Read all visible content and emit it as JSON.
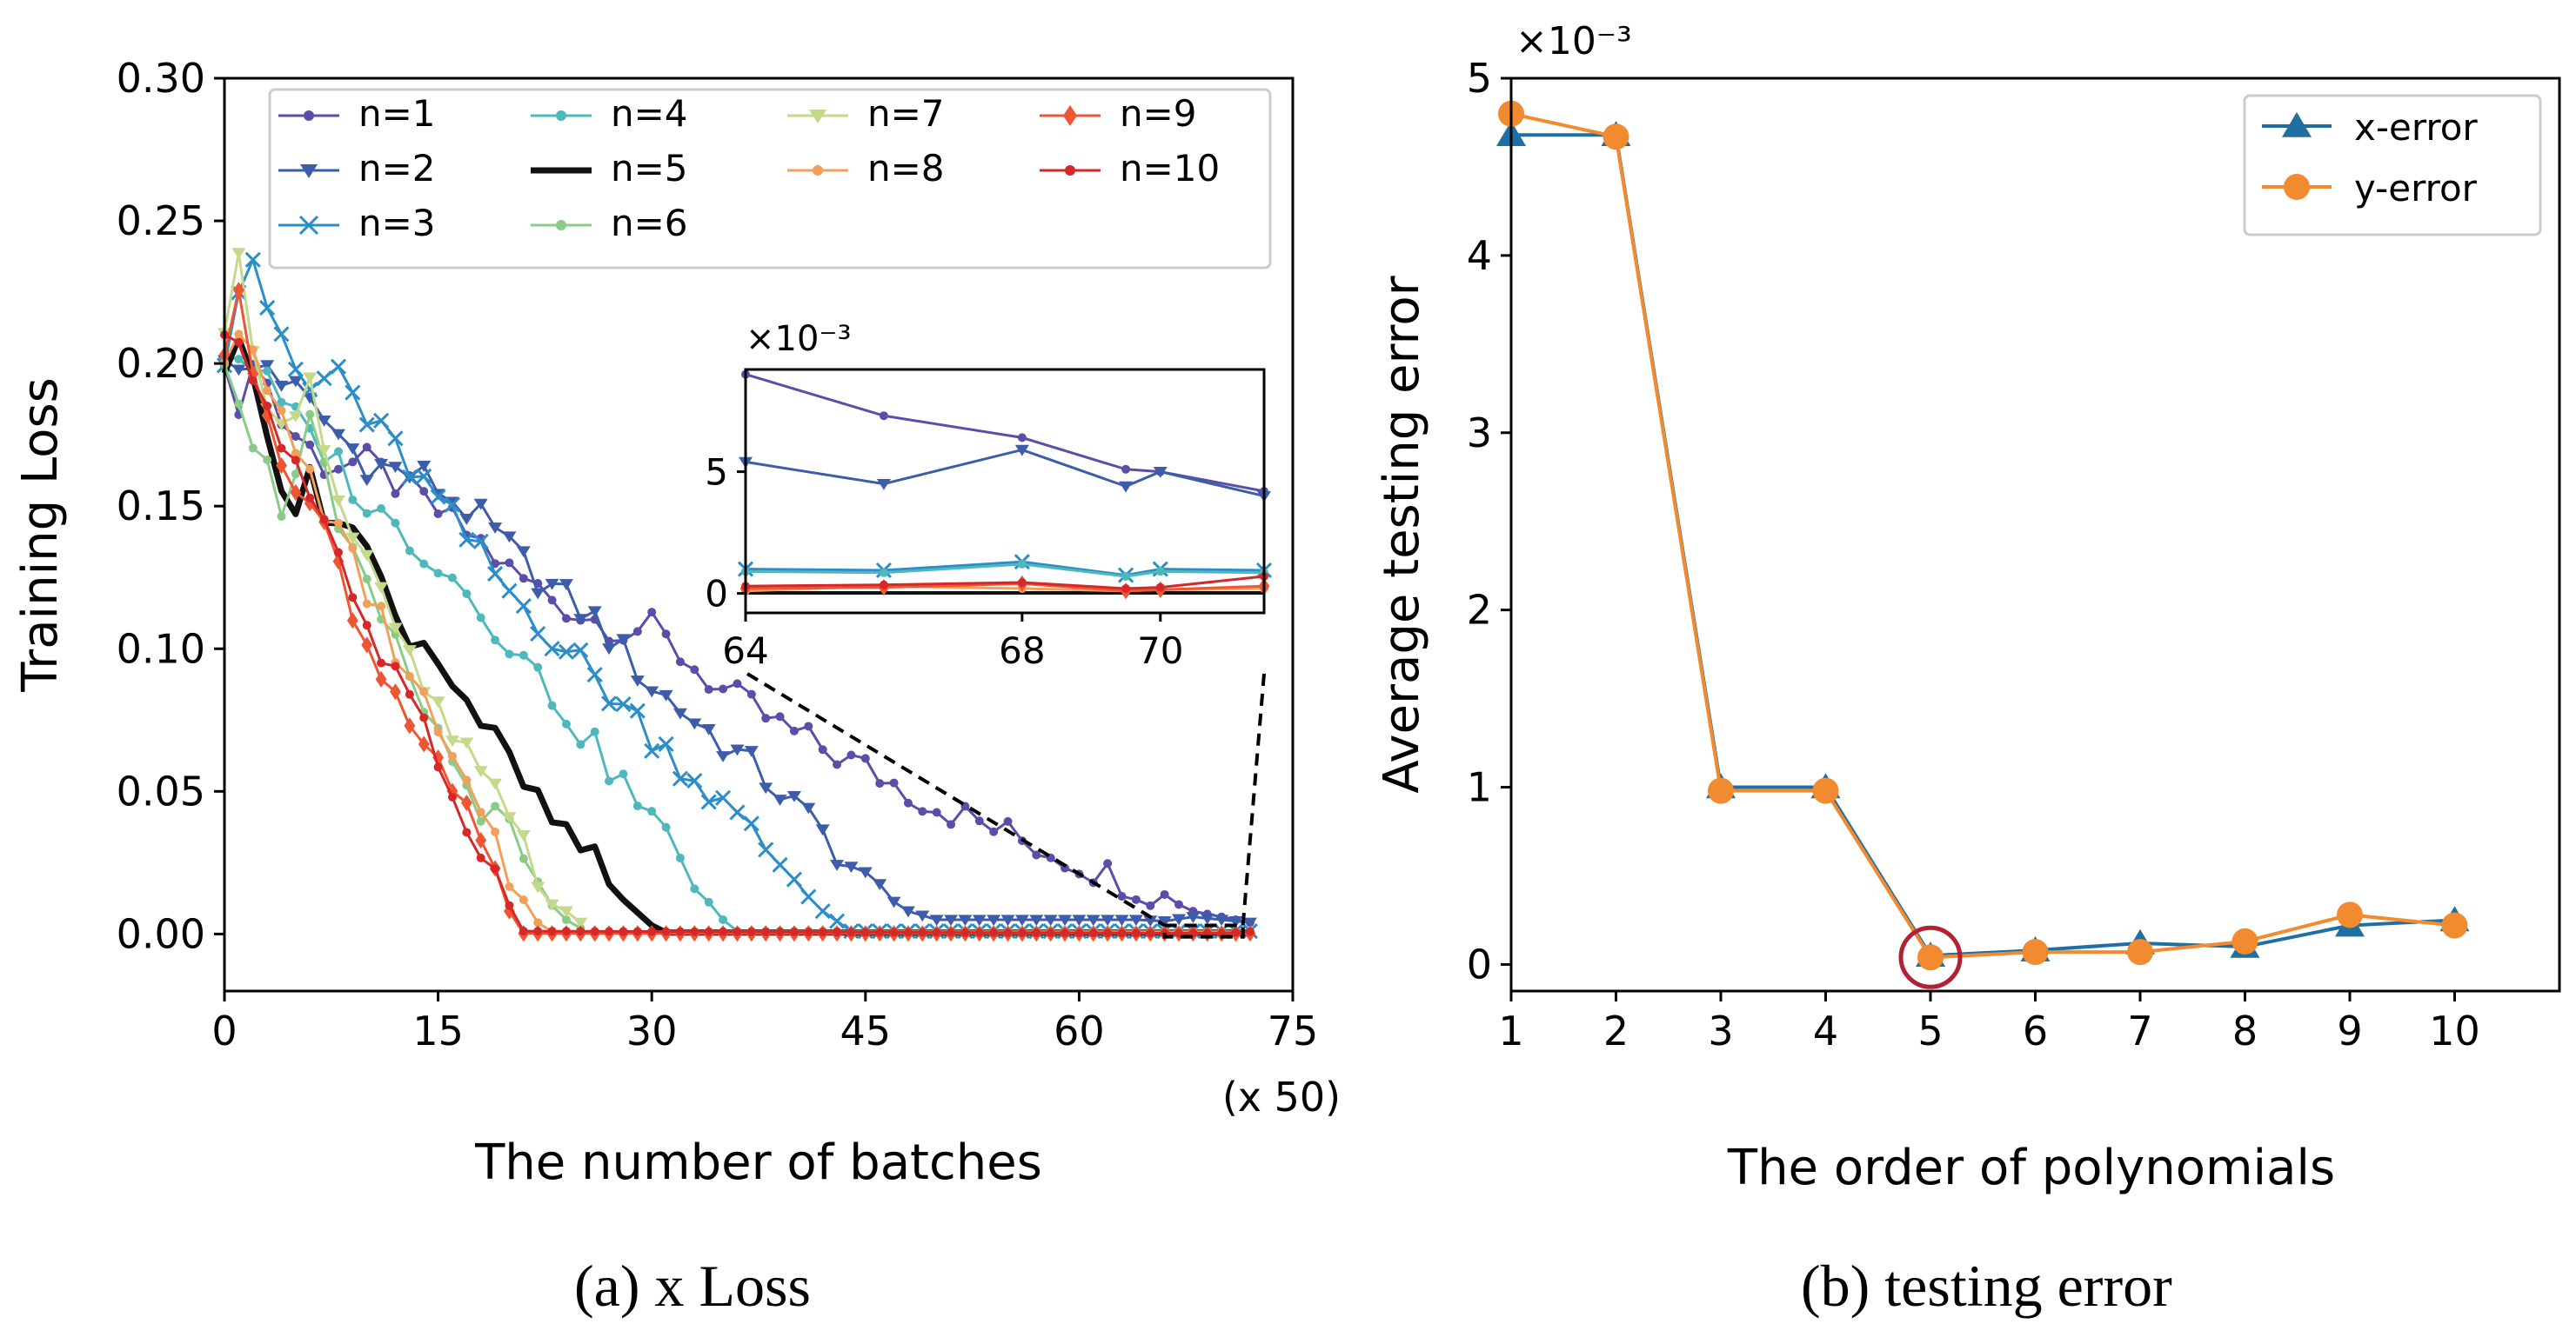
{
  "captions": {
    "left": "(a) x Loss",
    "right": "(b) testing error"
  },
  "chart_data": [
    {
      "type": "line",
      "title": "",
      "xlabel": "The number of batches",
      "x_multiplier_label": "(x 50)",
      "ylabel": "Training Loss",
      "xlim": [
        0,
        75
      ],
      "ylim": [
        -0.02,
        0.3
      ],
      "xticks": [
        0,
        15,
        30,
        45,
        60,
        75
      ],
      "yticks": [
        0.0,
        0.05,
        0.1,
        0.15,
        0.2,
        0.25,
        0.3
      ],
      "ytick_labels": [
        "0.00",
        "0.05",
        "0.10",
        "0.15",
        "0.20",
        "0.25",
        "0.30"
      ],
      "legend_loc": "top",
      "series": [
        {
          "name": "n=1",
          "color": "#5b4ea8",
          "marker": "dot",
          "end": 72,
          "anchors": [
            [
              0,
              0.205
            ],
            [
              1,
              0.177
            ],
            [
              2,
              0.205
            ],
            [
              4,
              0.18
            ],
            [
              7,
              0.165
            ],
            [
              10,
              0.165
            ],
            [
              15,
              0.148
            ],
            [
              18,
              0.137
            ],
            [
              20,
              0.127
            ],
            [
              25,
              0.112
            ],
            [
              28,
              0.107
            ],
            [
              30,
              0.107
            ],
            [
              32,
              0.098
            ],
            [
              35,
              0.085
            ],
            [
              40,
              0.07
            ],
            [
              45,
              0.058
            ],
            [
              50,
              0.045
            ],
            [
              55,
              0.035
            ],
            [
              60,
              0.025
            ],
            [
              65,
              0.015
            ],
            [
              68,
              0.008
            ],
            [
              70,
              0.006
            ],
            [
              72,
              0.004
            ]
          ]
        },
        {
          "name": "n=2",
          "color": "#3d5dab",
          "marker": "tri",
          "end": 72,
          "anchors": [
            [
              0,
              0.205
            ],
            [
              1,
              0.195
            ],
            [
              3,
              0.2
            ],
            [
              6,
              0.185
            ],
            [
              10,
              0.165
            ],
            [
              14,
              0.16
            ],
            [
              18,
              0.145
            ],
            [
              22,
              0.125
            ],
            [
              26,
              0.11
            ],
            [
              30,
              0.087
            ],
            [
              33,
              0.075
            ],
            [
              36,
              0.063
            ],
            [
              39,
              0.05
            ],
            [
              42,
              0.035
            ],
            [
              45,
              0.018
            ],
            [
              48,
              0.008
            ],
            [
              50,
              0.005
            ],
            [
              55,
              0.005
            ],
            [
              60,
              0.005
            ],
            [
              64,
              0.005
            ],
            [
              66,
              0.0045
            ],
            [
              68,
              0.006
            ],
            [
              70,
              0.005
            ],
            [
              72,
              0.004
            ]
          ]
        },
        {
          "name": "n=3",
          "color": "#2b8ec9",
          "marker": "x",
          "end": 72,
          "anchors": [
            [
              0,
              0.205
            ],
            [
              1,
              0.23
            ],
            [
              2,
              0.238
            ],
            [
              4,
              0.205
            ],
            [
              6,
              0.19
            ],
            [
              8,
              0.198
            ],
            [
              10,
              0.18
            ],
            [
              12,
              0.17
            ],
            [
              16,
              0.145
            ],
            [
              20,
              0.12
            ],
            [
              24,
              0.1
            ],
            [
              28,
              0.08
            ],
            [
              32,
              0.06
            ],
            [
              36,
              0.04
            ],
            [
              40,
              0.02
            ],
            [
              42,
              0.008
            ],
            [
              44,
              0.001
            ],
            [
              72,
              0.001
            ]
          ]
        },
        {
          "name": "n=4",
          "color": "#4fb8bd",
          "marker": "dot",
          "end": 72,
          "anchors": [
            [
              0,
              0.205
            ],
            [
              2,
              0.2
            ],
            [
              4,
              0.185
            ],
            [
              6,
              0.175
            ],
            [
              8,
              0.165
            ],
            [
              10,
              0.15
            ],
            [
              14,
              0.135
            ],
            [
              18,
              0.115
            ],
            [
              22,
              0.09
            ],
            [
              26,
              0.065
            ],
            [
              30,
              0.04
            ],
            [
              33,
              0.02
            ],
            [
              35,
              0.005
            ],
            [
              36,
              0.001
            ],
            [
              72,
              0.001
            ]
          ]
        },
        {
          "name": "n=5",
          "color": "#111111",
          "marker": "none",
          "width": 7,
          "end": 72,
          "anchors": [
            [
              0,
              0.2
            ],
            [
              1,
              0.205
            ],
            [
              2,
              0.195
            ],
            [
              3,
              0.18
            ],
            [
              4,
              0.16
            ],
            [
              5,
              0.15
            ],
            [
              6,
              0.158
            ],
            [
              7,
              0.145
            ],
            [
              8,
              0.15
            ],
            [
              10,
              0.135
            ],
            [
              12,
              0.11
            ],
            [
              14,
              0.103
            ],
            [
              16,
              0.09
            ],
            [
              18,
              0.075
            ],
            [
              20,
              0.06
            ],
            [
              22,
              0.045
            ],
            [
              24,
              0.035
            ],
            [
              26,
              0.025
            ],
            [
              28,
              0.012
            ],
            [
              30,
              0.003
            ],
            [
              31,
              0.0005
            ],
            [
              72,
              0.0005
            ]
          ]
        },
        {
          "name": "n=6",
          "color": "#88cc88",
          "marker": "dot",
          "end": 25,
          "anchors": [
            [
              0,
              0.205
            ],
            [
              2,
              0.175
            ],
            [
              4,
              0.15
            ],
            [
              6,
              0.18
            ],
            [
              8,
              0.14
            ],
            [
              10,
              0.12
            ],
            [
              12,
              0.1
            ],
            [
              14,
              0.08
            ],
            [
              16,
              0.06
            ],
            [
              18,
              0.045
            ],
            [
              20,
              0.035
            ],
            [
              22,
              0.015
            ],
            [
              24,
              0.005
            ],
            [
              25,
              0.002
            ]
          ]
        },
        {
          "name": "n=7",
          "color": "#c5d98a",
          "marker": "tri",
          "end": 25,
          "anchors": [
            [
              0,
              0.205
            ],
            [
              1,
              0.235
            ],
            [
              2,
              0.21
            ],
            [
              3,
              0.19
            ],
            [
              4,
              0.175
            ],
            [
              6,
              0.198
            ],
            [
              8,
              0.15
            ],
            [
              10,
              0.13
            ],
            [
              12,
              0.105
            ],
            [
              14,
              0.085
            ],
            [
              16,
              0.07
            ],
            [
              18,
              0.055
            ],
            [
              20,
              0.04
            ],
            [
              22,
              0.02
            ],
            [
              24,
              0.008
            ],
            [
              25,
              0.004
            ]
          ]
        },
        {
          "name": "n=8",
          "color": "#f0a05a",
          "marker": "dot",
          "end": 72,
          "anchors": [
            [
              0,
              0.205
            ],
            [
              1,
              0.215
            ],
            [
              2,
              0.2
            ],
            [
              4,
              0.18
            ],
            [
              6,
              0.16
            ],
            [
              8,
              0.14
            ],
            [
              10,
              0.12
            ],
            [
              12,
              0.1
            ],
            [
              14,
              0.08
            ],
            [
              16,
              0.06
            ],
            [
              18,
              0.04
            ],
            [
              20,
              0.02
            ],
            [
              22,
              0.004
            ],
            [
              23,
              0.0008
            ],
            [
              72,
              0.0008
            ]
          ]
        },
        {
          "name": "n=9",
          "color": "#ee5533",
          "marker": "diamond",
          "end": 72,
          "anchors": [
            [
              0,
              0.205
            ],
            [
              1,
              0.22
            ],
            [
              2,
              0.2
            ],
            [
              4,
              0.17
            ],
            [
              6,
              0.15
            ],
            [
              8,
              0.13
            ],
            [
              10,
              0.1
            ],
            [
              12,
              0.085
            ],
            [
              14,
              0.07
            ],
            [
              16,
              0.05
            ],
            [
              18,
              0.03
            ],
            [
              20,
              0.008
            ],
            [
              21,
              0.0002
            ],
            [
              72,
              0.0002
            ]
          ]
        },
        {
          "name": "n=10",
          "color": "#d62828",
          "marker": "dot",
          "end": 72,
          "anchors": [
            [
              0,
              0.205
            ],
            [
              1,
              0.21
            ],
            [
              2,
              0.195
            ],
            [
              4,
              0.175
            ],
            [
              6,
              0.155
            ],
            [
              8,
              0.135
            ],
            [
              10,
              0.105
            ],
            [
              12,
              0.09
            ],
            [
              14,
              0.07
            ],
            [
              16,
              0.05
            ],
            [
              18,
              0.03
            ],
            [
              20,
              0.01
            ],
            [
              21,
              0.001
            ],
            [
              66,
              0.0003
            ],
            [
              70,
              0.0003
            ],
            [
              72,
              0.0008
            ]
          ]
        }
      ],
      "inset": {
        "xlim": [
          64,
          71.5
        ],
        "ylim": [
          -0.8,
          9.2
        ],
        "xticks": [
          64,
          68,
          70
        ],
        "yticks": [
          0,
          5
        ],
        "multiplier_label": "×10⁻³",
        "series": [
          {
            "name": "n=1",
            "x": [
              64,
              66,
              68,
              69.5,
              70,
              71.5
            ],
            "y": [
              9.0,
              7.3,
              6.4,
              5.1,
              5.0,
              4.2
            ]
          },
          {
            "name": "n=2",
            "x": [
              64,
              66,
              68,
              69.5,
              70,
              71.5
            ],
            "y": [
              5.4,
              4.5,
              5.9,
              4.4,
              5.0,
              4.0
            ]
          },
          {
            "name": "n=3",
            "x": [
              64,
              66,
              68,
              69.5,
              70,
              71.5
            ],
            "y": [
              1.0,
              0.95,
              1.3,
              0.75,
              1.0,
              0.95
            ]
          },
          {
            "name": "n=4",
            "x": [
              64,
              66,
              68,
              69.5,
              70,
              71.5
            ],
            "y": [
              0.9,
              0.85,
              1.2,
              0.7,
              0.9,
              0.85
            ]
          },
          {
            "name": "n=5",
            "x": [
              64,
              71.5
            ],
            "y": [
              0.02,
              0.02
            ]
          },
          {
            "name": "n=8",
            "x": [
              64,
              66,
              68,
              69.5,
              70,
              71.5
            ],
            "y": [
              0.1,
              0.3,
              0.2,
              0.1,
              0.15,
              0.2
            ]
          },
          {
            "name": "n=9",
            "x": [
              64,
              66,
              68,
              69.5,
              70,
              71.5
            ],
            "y": [
              0.2,
              0.25,
              0.4,
              0.1,
              0.15,
              0.3
            ]
          },
          {
            "name": "n=10",
            "x": [
              64,
              66,
              68,
              69.5,
              70,
              71.5
            ],
            "y": [
              0.3,
              0.35,
              0.45,
              0.2,
              0.25,
              0.7
            ]
          }
        ]
      },
      "zoom_box": {
        "x": [
          66,
          71.5
        ],
        "y": [
          -0.001,
          0.003
        ]
      }
    },
    {
      "type": "line",
      "title": "",
      "xlabel": "The order of polynomials",
      "ylabel": "Average testing error",
      "y_multiplier_label": "×10⁻³",
      "xlim": [
        1,
        11
      ],
      "ylim": [
        -0.15,
        5.0
      ],
      "xticks": [
        1,
        2,
        3,
        4,
        5,
        6,
        7,
        8,
        9,
        10
      ],
      "yticks": [
        0,
        1,
        2,
        3,
        4,
        5
      ],
      "legend_loc": "top-right",
      "highlight": {
        "x": 5,
        "y": 0.04,
        "color": "#b22234"
      },
      "series": [
        {
          "name": "x-error",
          "color": "#1f6fa3",
          "marker": "tri",
          "x": [
            1,
            2,
            3,
            4,
            5,
            6,
            7,
            8,
            9,
            10
          ],
          "y": [
            4.68,
            4.68,
            1.0,
            1.0,
            0.05,
            0.08,
            0.12,
            0.1,
            0.22,
            0.25
          ]
        },
        {
          "name": "y-error",
          "color": "#f28a30",
          "marker": "dot",
          "x": [
            1,
            2,
            3,
            4,
            5,
            6,
            7,
            8,
            9,
            10
          ],
          "y": [
            4.8,
            4.67,
            0.98,
            0.98,
            0.04,
            0.07,
            0.07,
            0.13,
            0.28,
            0.22
          ]
        }
      ]
    }
  ]
}
